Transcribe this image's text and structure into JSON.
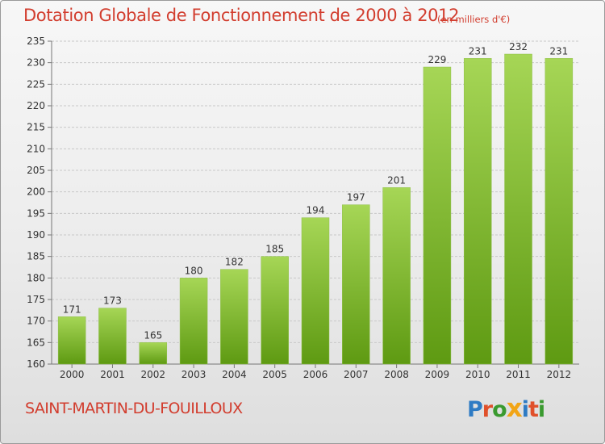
{
  "header": {
    "title": "Dotation Globale de Fonctionnement de 2000 à 2012",
    "subtitle": "(en milliers d'€)"
  },
  "footer": {
    "commune": "SAINT-MARTIN-DU-FOUILLOUX",
    "logo_text": "Proxiti"
  },
  "colors": {
    "title": "#d23d2e",
    "bar_light": "#a6d656",
    "bar_dark": "#5e9a12",
    "grid": "#c8c8c8"
  },
  "chart_data": {
    "type": "bar",
    "title": "Dotation Globale de Fonctionnement de 2000 à 2012",
    "subtitle": "(en milliers d'€)",
    "categories": [
      "2000",
      "2001",
      "2002",
      "2003",
      "2004",
      "2005",
      "2006",
      "2007",
      "2008",
      "2009",
      "2010",
      "2011",
      "2012"
    ],
    "values": [
      171,
      173,
      165,
      180,
      182,
      185,
      194,
      197,
      201,
      229,
      231,
      232,
      231
    ],
    "ylim": [
      160,
      235
    ],
    "yticks": [
      160,
      165,
      170,
      175,
      180,
      185,
      190,
      195,
      200,
      205,
      210,
      215,
      220,
      225,
      230,
      235
    ],
    "grid": true,
    "data_labels": true
  }
}
